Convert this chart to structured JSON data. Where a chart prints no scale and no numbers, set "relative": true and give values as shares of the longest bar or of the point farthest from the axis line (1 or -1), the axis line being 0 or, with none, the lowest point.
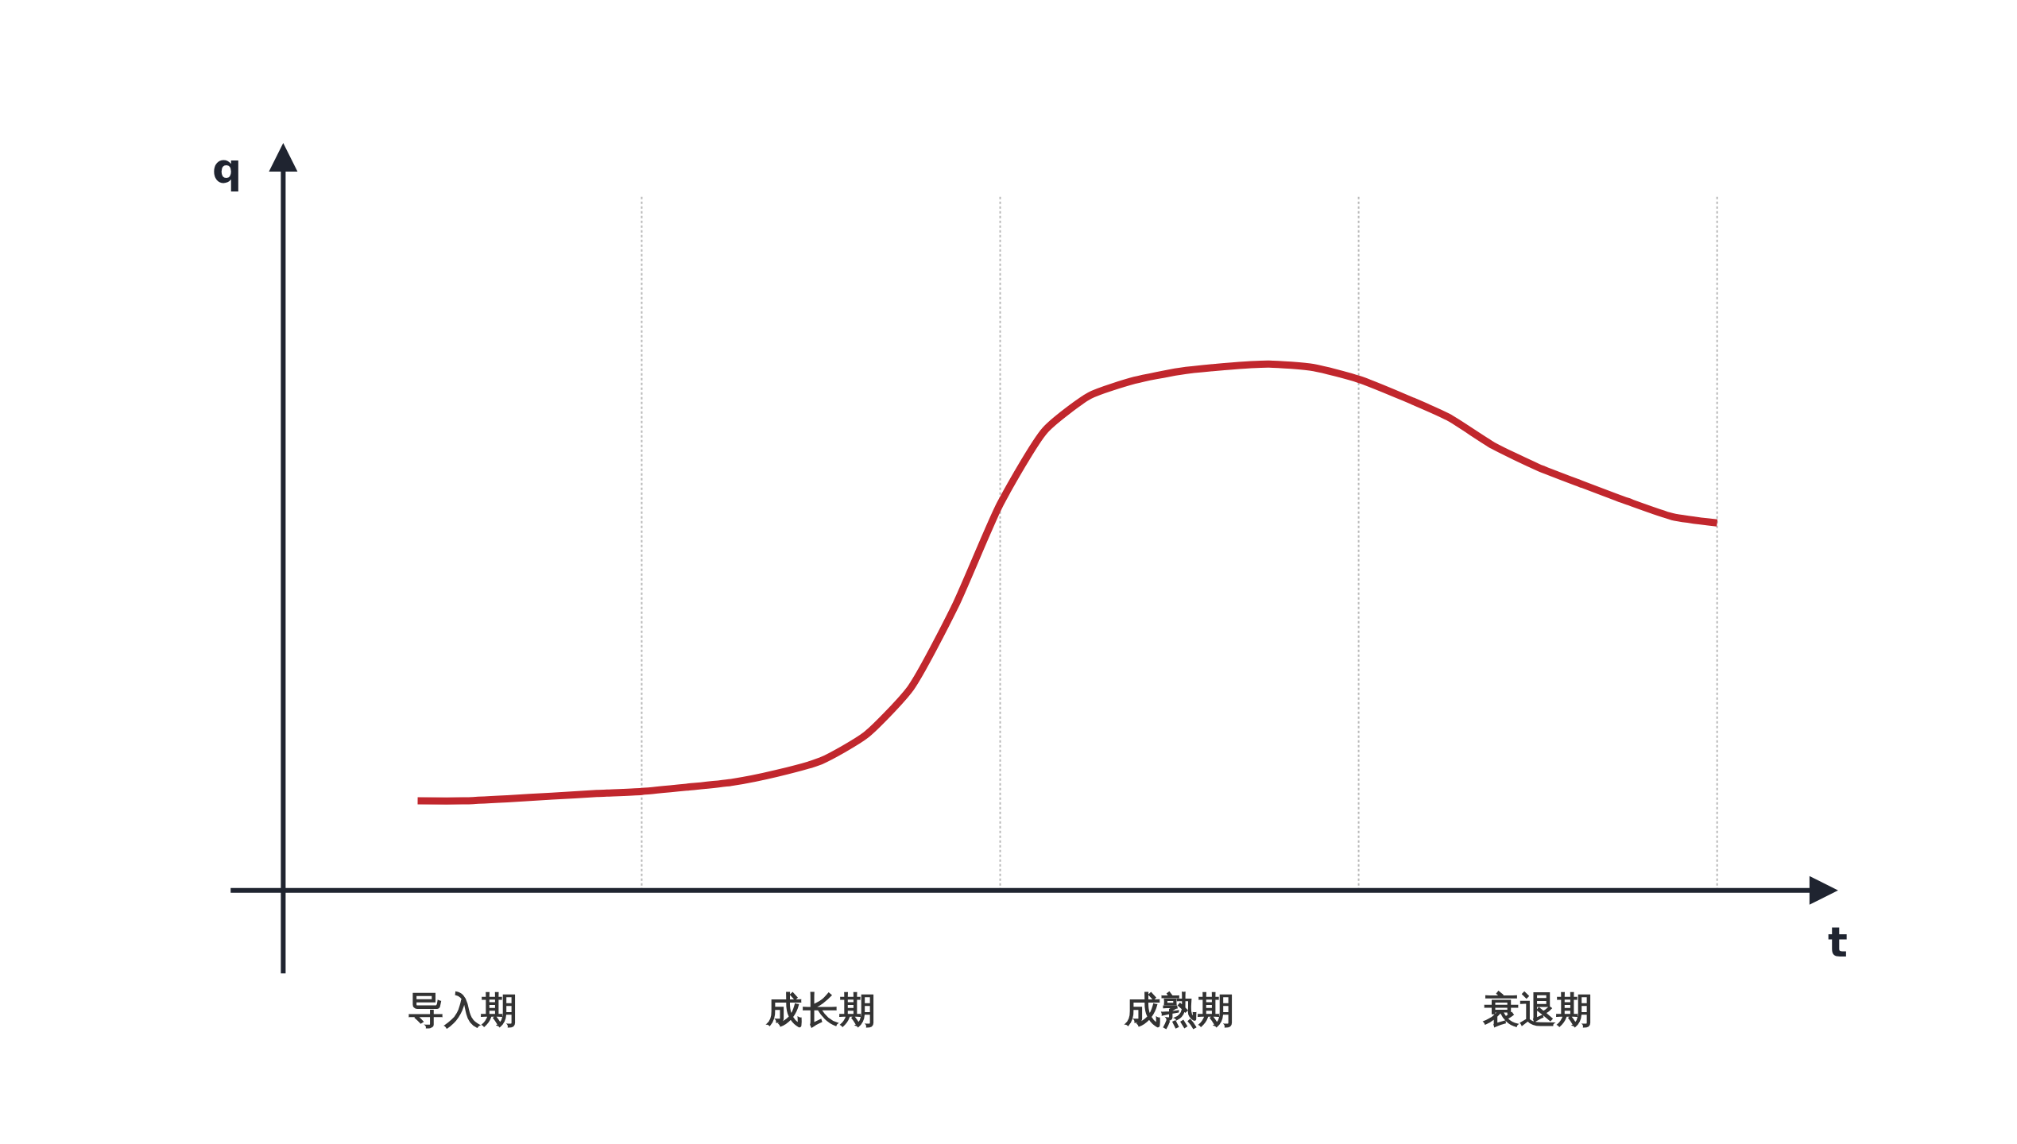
{
  "chart_data": {
    "type": "line",
    "relative": true,
    "xlabel": "t",
    "ylabel": "q",
    "categories": [
      null,
      null,
      null,
      null,
      "导入期",
      null,
      null,
      null,
      null,
      null,
      null,
      null,
      "成长期",
      null,
      null,
      null,
      null,
      null,
      null,
      null,
      "成熟期",
      null,
      null,
      null,
      null,
      null,
      null,
      null,
      "衰退期",
      null,
      null,
      null,
      null
    ],
    "series": [
      {
        "color": "#c1272d",
        "values": [
          null,
          null,
          null,
          0.17,
          0.17,
          0.174,
          0.179,
          0.184,
          0.188,
          0.196,
          0.205,
          0.222,
          0.246,
          0.295,
          0.384,
          0.541,
          0.734,
          0.874,
          0.94,
          0.969,
          0.986,
          0.995,
          1,
          0.993,
          0.971,
          0.937,
          0.899,
          0.845,
          0.804,
          0.771,
          0.739,
          0.71,
          0.698
        ]
      }
    ],
    "grid": "x",
    "marker": "none",
    "line_style": "solid"
  }
}
